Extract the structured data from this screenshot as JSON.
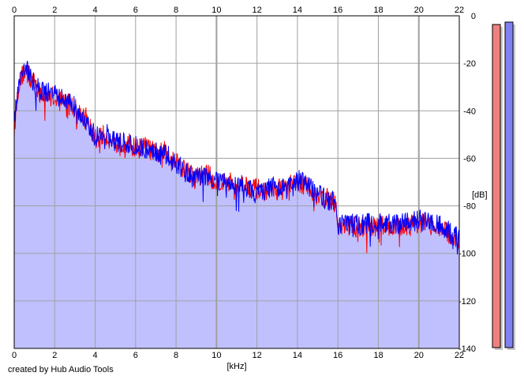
{
  "chart_data": {
    "type": "area",
    "xlabel": "[kHz]",
    "ylabel": "[dB]",
    "xlim": [
      0,
      22
    ],
    "ylim": [
      -140,
      0
    ],
    "x_ticks": [
      0,
      2,
      4,
      6,
      8,
      10,
      12,
      14,
      16,
      18,
      20,
      22
    ],
    "y_ticks": [
      0,
      -20,
      -40,
      -60,
      -80,
      -100,
      -120,
      -140
    ],
    "grid": true,
    "series": [
      {
        "color": "#ff0000",
        "x": [
          0,
          0.2,
          0.4,
          0.6,
          0.8,
          1.0,
          1.2,
          1.5,
          2.0,
          2.5,
          3.0,
          3.5,
          4.0,
          4.5,
          5.0,
          5.5,
          6.0,
          6.5,
          7.0,
          7.5,
          8.0,
          8.5,
          9.0,
          9.5,
          10.0,
          10.5,
          11.0,
          11.5,
          12.0,
          12.5,
          13.0,
          13.5,
          14.0,
          14.5,
          15.0,
          15.5,
          15.9,
          16.0,
          16.5,
          17.0,
          17.5,
          18.0,
          18.5,
          19.0,
          19.5,
          20.0,
          20.5,
          21.0,
          21.5,
          22.0
        ],
        "values": [
          -48,
          -30,
          -25,
          -22,
          -27,
          -28,
          -32,
          -33,
          -34,
          -35,
          -39,
          -42,
          -52,
          -50,
          -54,
          -53,
          -56,
          -55,
          -58,
          -57,
          -61,
          -65,
          -68,
          -66,
          -71,
          -69,
          -72,
          -71,
          -73,
          -74,
          -73,
          -72,
          -70,
          -72,
          -76,
          -77,
          -79,
          -89,
          -88,
          -89,
          -88,
          -89,
          -88,
          -89,
          -88,
          -87,
          -88,
          -89,
          -92,
          -95
        ]
      },
      {
        "color": "#0000ff",
        "x": [
          0,
          0.2,
          0.4,
          0.6,
          0.8,
          1.0,
          1.2,
          1.5,
          2.0,
          2.5,
          3.0,
          3.5,
          4.0,
          4.5,
          5.0,
          5.5,
          6.0,
          6.5,
          7.0,
          7.5,
          8.0,
          8.5,
          9.0,
          9.5,
          10.0,
          10.5,
          11.0,
          11.5,
          12.0,
          12.5,
          13.0,
          13.5,
          14.0,
          14.5,
          15.0,
          15.5,
          15.9,
          16.0,
          16.5,
          17.0,
          17.5,
          18.0,
          18.5,
          19.0,
          19.5,
          20.0,
          20.5,
          21.0,
          21.5,
          22.0
        ],
        "values": [
          -45,
          -28,
          -23,
          -21,
          -25,
          -29,
          -31,
          -32,
          -33,
          -36,
          -38,
          -43,
          -51,
          -49,
          -53,
          -54,
          -55,
          -56,
          -57,
          -58,
          -62,
          -66,
          -69,
          -67,
          -70,
          -70,
          -71,
          -72,
          -74,
          -73,
          -72,
          -73,
          -69,
          -71,
          -75,
          -78,
          -78,
          -88,
          -87,
          -88,
          -87,
          -88,
          -87,
          -88,
          -87,
          -86,
          -87,
          -88,
          -91,
          -94
        ]
      }
    ],
    "channel_meters": [
      {
        "color": "#f08080",
        "level_db": -2
      },
      {
        "color": "#8080f0",
        "level_db": -1
      }
    ]
  },
  "footer": {
    "credit": "created by Hub Audio Tools"
  },
  "colors": {
    "fill": "#c0c0ff",
    "grid": "#a0a0a0",
    "red_line": "#ff0000",
    "blue_line": "#0000ff"
  }
}
